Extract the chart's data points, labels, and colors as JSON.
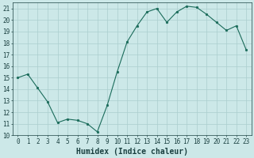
{
  "x": [
    0,
    1,
    2,
    3,
    4,
    5,
    6,
    7,
    8,
    9,
    10,
    11,
    12,
    13,
    14,
    15,
    16,
    17,
    18,
    19,
    20,
    21,
    22,
    23
  ],
  "y": [
    15.0,
    15.3,
    14.1,
    12.9,
    11.1,
    11.4,
    11.3,
    11.0,
    10.3,
    12.6,
    15.5,
    18.1,
    19.5,
    20.7,
    21.0,
    19.8,
    20.7,
    21.2,
    21.1,
    20.5,
    19.8,
    19.1,
    19.5,
    17.4
  ],
  "line_color": "#1a6b5a",
  "marker": "o",
  "marker_size": 1.8,
  "bg_color": "#cce8e8",
  "grid_color": "#aacece",
  "xlabel": "Humidex (Indice chaleur)",
  "ylim": [
    10,
    21.5
  ],
  "xlim": [
    -0.5,
    23.5
  ],
  "yticks": [
    10,
    11,
    12,
    13,
    14,
    15,
    16,
    17,
    18,
    19,
    20,
    21
  ],
  "xticks": [
    0,
    1,
    2,
    3,
    4,
    5,
    6,
    7,
    8,
    9,
    10,
    11,
    12,
    13,
    14,
    15,
    16,
    17,
    18,
    19,
    20,
    21,
    22,
    23
  ],
  "tick_fontsize": 5.5,
  "xlabel_fontsize": 7.0,
  "label_color": "#1a4040"
}
